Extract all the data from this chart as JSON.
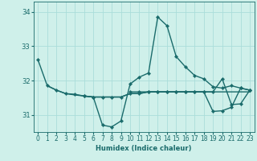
{
  "title": "",
  "xlabel": "Humidex (Indice chaleur)",
  "ylabel": "",
  "bg_color": "#cff0ea",
  "line_color": "#1a6b6b",
  "grid_color": "#aaddda",
  "xlim": [
    -0.5,
    23.5
  ],
  "ylim": [
    30.5,
    34.3
  ],
  "yticks": [
    31,
    32,
    33,
    34
  ],
  "xticks": [
    0,
    1,
    2,
    3,
    4,
    5,
    6,
    7,
    8,
    9,
    10,
    11,
    12,
    13,
    14,
    15,
    16,
    17,
    18,
    19,
    20,
    21,
    22,
    23
  ],
  "series": [
    [
      32.6,
      31.85,
      31.72,
      31.62,
      31.6,
      31.55,
      31.52,
      30.7,
      30.65,
      30.82,
      31.9,
      32.1,
      32.22,
      33.85,
      33.6,
      32.7,
      32.4,
      32.15,
      32.05,
      31.82,
      31.78,
      31.85,
      31.78,
      31.72
    ],
    [
      null,
      31.85,
      31.72,
      31.62,
      31.58,
      31.55,
      31.52,
      31.52,
      31.52,
      31.52,
      31.62,
      31.62,
      31.67,
      31.67,
      31.67,
      31.67,
      31.67,
      31.67,
      31.67,
      31.67,
      31.67,
      31.67,
      31.67,
      31.67
    ],
    [
      null,
      null,
      null,
      null,
      null,
      31.55,
      31.52,
      31.52,
      31.52,
      31.52,
      31.62,
      31.62,
      31.67,
      31.67,
      31.67,
      31.67,
      31.67,
      31.67,
      31.67,
      31.67,
      32.05,
      31.3,
      31.32,
      31.72
    ],
    [
      null,
      null,
      null,
      null,
      null,
      null,
      null,
      null,
      null,
      null,
      31.67,
      31.67,
      31.67,
      31.67,
      31.67,
      31.67,
      31.67,
      31.67,
      31.67,
      31.1,
      31.12,
      31.22,
      31.78,
      31.72
    ]
  ],
  "marker_series": [
    0,
    2,
    3
  ],
  "marker_size": 2.2,
  "line_width": 1.0,
  "tick_fontsize": 5.5,
  "xlabel_fontsize": 6.0
}
